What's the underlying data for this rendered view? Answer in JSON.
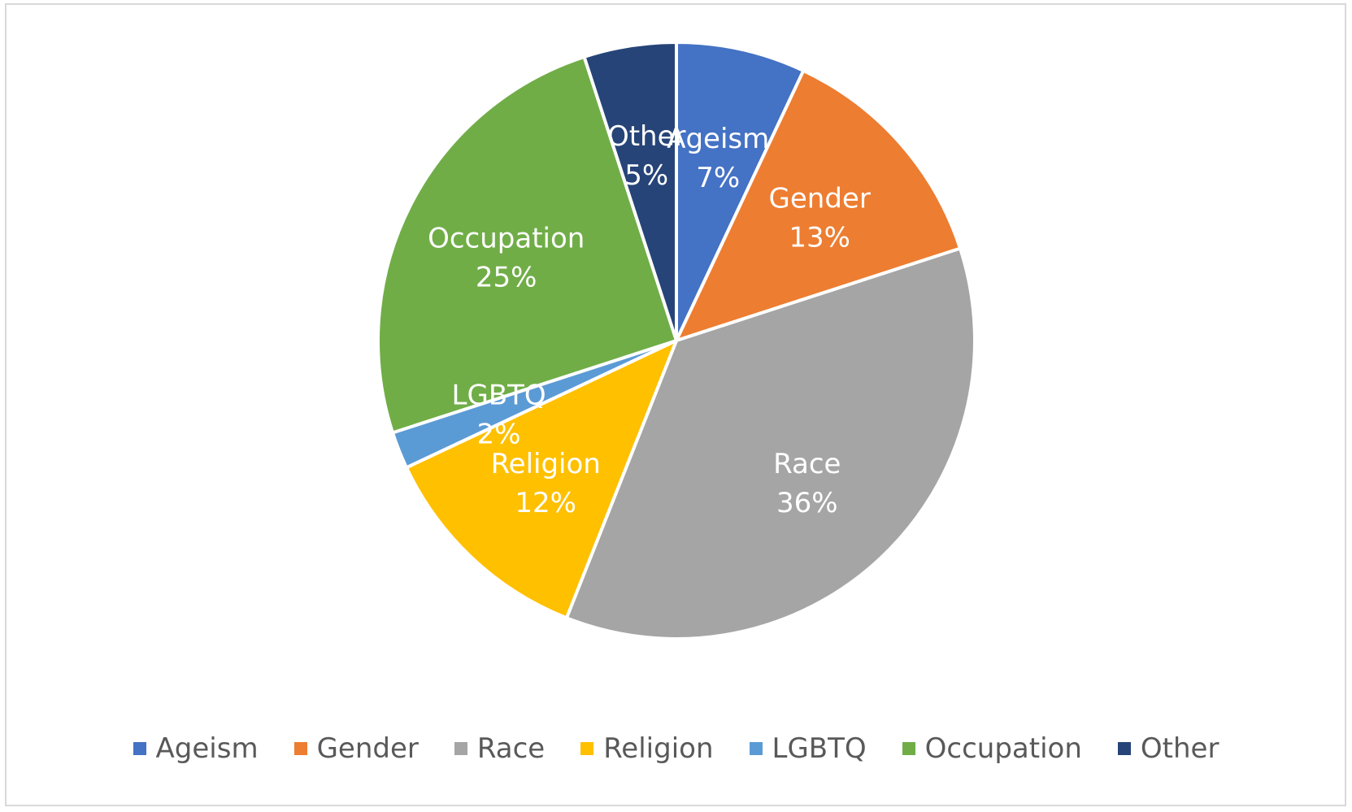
{
  "chart_data": {
    "type": "pie",
    "title": "",
    "categories": [
      "Ageism",
      "Gender",
      "Race",
      "Religion",
      "LGBTQ",
      "Occupation",
      "Other"
    ],
    "values": [
      7,
      13,
      36,
      12,
      2,
      25,
      5
    ],
    "colors": [
      "#4472C4",
      "#ED7D31",
      "#A5A5A5",
      "#FFC000",
      "#5B9BD5",
      "#70AD47",
      "#264478"
    ],
    "data_labels": [
      {
        "name": "Ageism",
        "value": "7%"
      },
      {
        "name": "Gender",
        "value": "13%"
      },
      {
        "name": "Race",
        "value": "36%"
      },
      {
        "name": "Religion",
        "value": "12%"
      },
      {
        "name": "LGBTQ",
        "value": "2%"
      },
      {
        "name": "Occupation",
        "value": "25%"
      },
      {
        "name": "Other",
        "value": "5%"
      }
    ],
    "legend_position": "bottom",
    "start_angle": "12 o'clock",
    "direction": "clockwise"
  }
}
